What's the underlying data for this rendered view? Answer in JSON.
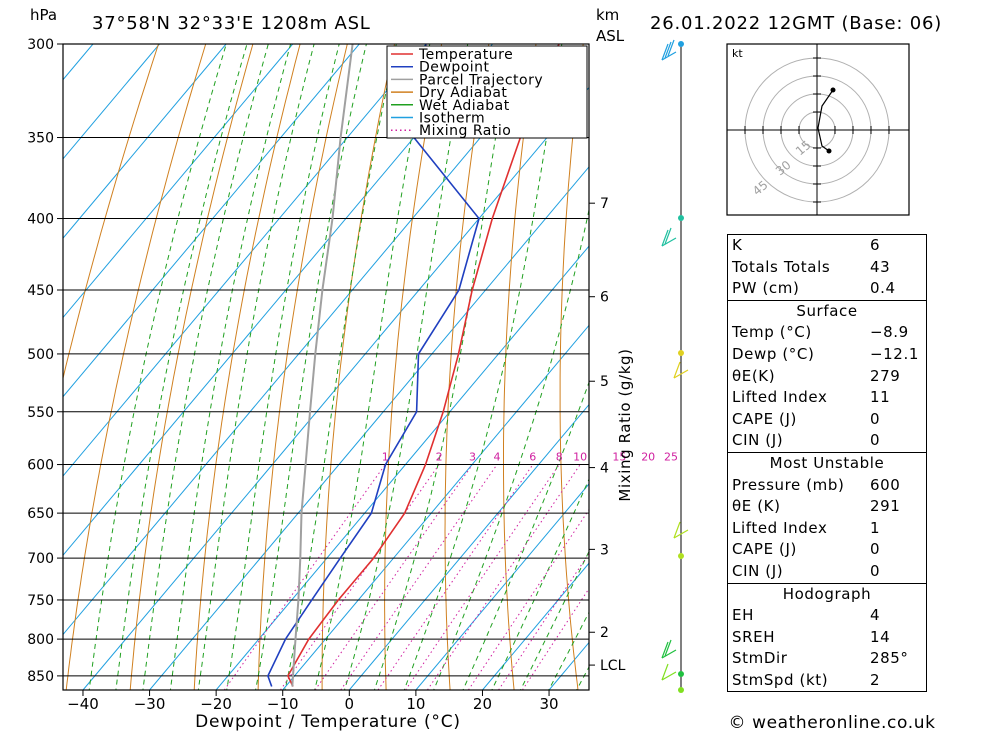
{
  "header": {
    "hpa_label": "hPa",
    "location": "37°58'N 32°33'E 1208m ASL",
    "km_label": "km",
    "asl_label": "ASL",
    "date": "26.01.2022 12GMT (Base: 06)"
  },
  "chart_data": {
    "type": "line",
    "xlabel": "Dewpoint / Temperature (°C)",
    "ylabel": "hPa",
    "mixing_ratio_axis_label": "Mixing Ratio (g/kg)",
    "x_ticks": [
      -40,
      -30,
      -20,
      -10,
      0,
      10,
      20,
      30
    ],
    "x_tick_labels": [
      "−40",
      "−30",
      "−20",
      "−10",
      "0",
      "10",
      "20",
      "30"
    ],
    "p_levels": [
      300,
      350,
      400,
      450,
      500,
      550,
      600,
      650,
      700,
      750,
      800,
      850
    ],
    "ylim": [
      870,
      300
    ],
    "xlim": [
      -43,
      36
    ],
    "skew": true,
    "km_ticks": [
      {
        "label": "7",
        "p": 390
      },
      {
        "label": "6",
        "p": 455
      },
      {
        "label": "5",
        "p": 523
      },
      {
        "label": "4",
        "p": 603
      },
      {
        "label": "3",
        "p": 690
      },
      {
        "label": "2",
        "p": 791
      },
      {
        "label": "LCL",
        "p": 835
      }
    ],
    "mixing_ratio_labels": [
      "1",
      "2",
      "3",
      "4",
      "6",
      "8",
      "10",
      "15",
      "20",
      "25"
    ],
    "legend": [
      "Temperature",
      "Dewpoint",
      "Parcel Trajectory",
      "Dry Adiabat",
      "Wet Adiabat",
      "Isotherm",
      "Mixing Ratio"
    ],
    "legend_position": "top-right",
    "series": [
      {
        "name": "Temperature",
        "color": "#e03030",
        "points": [
          [
            865,
            -8.9
          ],
          [
            850,
            -11
          ],
          [
            800,
            -12.5
          ],
          [
            750,
            -13
          ],
          [
            700,
            -13
          ],
          [
            650,
            -14
          ],
          [
            600,
            -17
          ],
          [
            550,
            -21
          ],
          [
            500,
            -26
          ],
          [
            450,
            -32
          ],
          [
            400,
            -38
          ],
          [
            350,
            -44
          ],
          [
            300,
            -50
          ]
        ]
      },
      {
        "name": "Dewpoint",
        "color": "#2040c0",
        "points": [
          [
            865,
            -12.1
          ],
          [
            850,
            -14
          ],
          [
            800,
            -16
          ],
          [
            750,
            -17
          ],
          [
            700,
            -18
          ],
          [
            650,
            -19
          ],
          [
            600,
            -23
          ],
          [
            550,
            -25
          ],
          [
            500,
            -32
          ],
          [
            450,
            -34
          ],
          [
            400,
            -40
          ],
          [
            350,
            -60
          ],
          [
            300,
            -70
          ]
        ]
      },
      {
        "name": "Parcel Trajectory",
        "color": "#a0a0a0",
        "points": [
          [
            865,
            -9
          ],
          [
            835,
            -11.5
          ],
          [
            800,
            -14.5
          ],
          [
            750,
            -19
          ],
          [
            700,
            -24
          ],
          [
            650,
            -29.5
          ],
          [
            600,
            -35
          ],
          [
            550,
            -41
          ],
          [
            500,
            -47.5
          ],
          [
            450,
            -54.5
          ],
          [
            400,
            -62
          ],
          [
            350,
            -71
          ],
          [
            300,
            -81
          ]
        ]
      }
    ]
  },
  "hodograph": {
    "unit": "kt",
    "ring_labels": [
      "15",
      "30",
      "45"
    ]
  },
  "indices": {
    "K": {
      "label": "K",
      "value": "6"
    },
    "TT": {
      "label": "Totals Totals",
      "value": "43"
    },
    "PW": {
      "label": "PW (cm)",
      "value": "0.4"
    }
  },
  "surface": {
    "title": "Surface",
    "rows": [
      {
        "label": "Temp (°C)",
        "value": "−8.9"
      },
      {
        "label": "Dewp (°C)",
        "value": "−12.1"
      },
      {
        "label": "θE(K)",
        "value": "279"
      },
      {
        "label": "Lifted Index",
        "value": "11"
      },
      {
        "label": "CAPE (J)",
        "value": "0"
      },
      {
        "label": "CIN (J)",
        "value": "0"
      }
    ]
  },
  "most_unstable": {
    "title": "Most Unstable",
    "rows": [
      {
        "label": "Pressure (mb)",
        "value": "600"
      },
      {
        "label": "θE (K)",
        "value": "291"
      },
      {
        "label": "Lifted Index",
        "value": "1"
      },
      {
        "label": "CAPE (J)",
        "value": "0"
      },
      {
        "label": "CIN (J)",
        "value": "0"
      }
    ]
  },
  "hodograph_table": {
    "title": "Hodograph",
    "rows": [
      {
        "label": "EH",
        "value": "4"
      },
      {
        "label": "SREH",
        "value": "14"
      },
      {
        "label": "StmDir",
        "value": "285°"
      },
      {
        "label": "StmSpd (kt)",
        "value": "2"
      }
    ]
  },
  "footer": {
    "credit": "© weatheronline.co.uk"
  },
  "colors": {
    "temperature": "#e03030",
    "dewpoint": "#2040c0",
    "parcel": "#a0a0a0",
    "dry_adiabat": "#d08020",
    "wet_adiabat": "#20a020",
    "isotherm": "#20a0e0",
    "mixing_ratio": "#d020a0"
  }
}
